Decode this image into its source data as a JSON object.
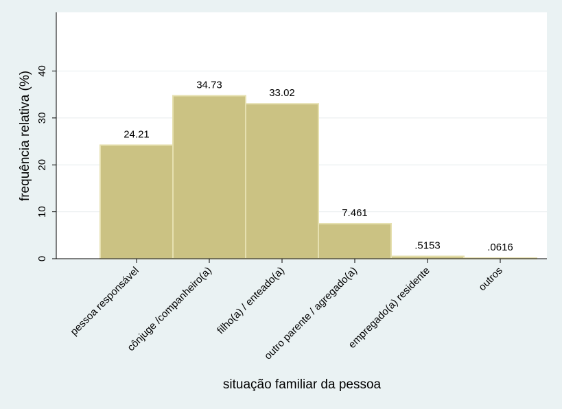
{
  "chart_data": {
    "type": "bar",
    "categories": [
      "pessoa responsável",
      "cônjuge /companheiro(a)",
      "filho(a) / enteado(a)",
      "outro parente / agregado(a)",
      "empregado(a) residente",
      "outros"
    ],
    "values": [
      24.21,
      34.73,
      33.02,
      7.461,
      0.5153,
      0.0616
    ],
    "data_labels": [
      "24.21",
      "34.73",
      "33.02",
      "7.461",
      ".5153",
      ".0616"
    ],
    "xlabel": "situação familiar da pessoa",
    "ylabel": "frequência relativa (%)",
    "ylim": [
      0,
      40
    ],
    "yticks": [
      0,
      10,
      20,
      30,
      40
    ],
    "grid": true,
    "bar_color": "#cbc283",
    "bar_edge_color": "#e6e0b0",
    "plot_background": "#ffffff",
    "page_background": "#eaf2f3"
  }
}
